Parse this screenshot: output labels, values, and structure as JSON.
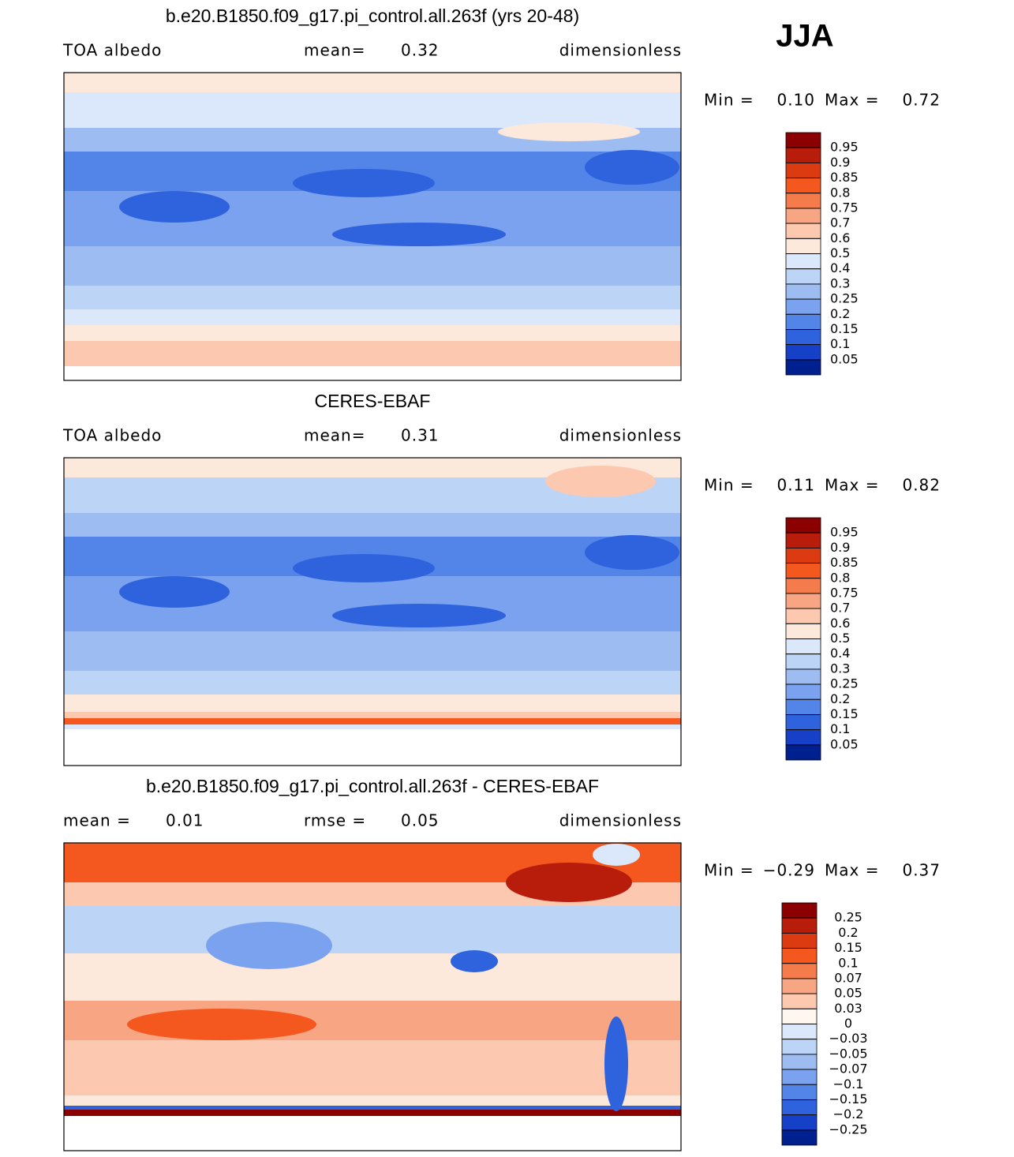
{
  "badge": "JJA",
  "panels": [
    {
      "title": "b.e20.B1850.f09_g17.pi_control.all.263f (yrs 20-48)",
      "header": [
        {
          "text": "TOA albedo"
        },
        {
          "text": "mean=",
          "value": 0.32
        },
        {
          "text": "dimensionless"
        }
      ],
      "min_label": "Min =",
      "min": {
        "value": 0.1,
        "label": "0.10"
      },
      "max_label": "Max =",
      "max": 0.72,
      "colorbar": {
        "levels": [
          0.95,
          0.9,
          0.85,
          0.8,
          0.75,
          0.7,
          0.6,
          0.5,
          0.4,
          0.3,
          0.25,
          0.2,
          0.15,
          0.1,
          0.05
        ],
        "colors": [
          "#8b0000",
          "#b81d0c",
          "#dc3a10",
          "#f4581f",
          "#f47c4c",
          "#f8a584",
          "#fcc9b0",
          "#fde8dc",
          "#dbe8fb",
          "#bcd5f6",
          "#9cbcf2",
          "#7aa2ee",
          "#5385e8",
          "#2f63de",
          "#1740c8",
          "#00208f"
        ]
      }
    },
    {
      "title": "CERES-EBAF",
      "header": [
        {
          "text": "TOA albedo"
        },
        {
          "text": "mean=",
          "value": 0.31
        },
        {
          "text": "dimensionless"
        }
      ],
      "min_label": "Min =",
      "min": 0.11,
      "max_label": "Max =",
      "max": 0.82,
      "colorbar": {
        "levels": [
          0.95,
          0.9,
          0.85,
          0.8,
          0.75,
          0.7,
          0.6,
          0.5,
          0.4,
          0.3,
          0.25,
          0.2,
          0.15,
          0.1,
          0.05
        ],
        "colors": [
          "#8b0000",
          "#b81d0c",
          "#dc3a10",
          "#f4581f",
          "#f47c4c",
          "#f8a584",
          "#fcc9b0",
          "#fde8dc",
          "#dbe8fb",
          "#bcd5f6",
          "#9cbcf2",
          "#7aa2ee",
          "#5385e8",
          "#2f63de",
          "#1740c8",
          "#00208f"
        ]
      }
    },
    {
      "title": "b.e20.B1850.f09_g17.pi_control.all.263f - CERES-EBAF",
      "header": [
        {
          "text": "mean =",
          "value": 0.01
        },
        {
          "text": "rmse =",
          "value": 0.05
        },
        {
          "text": "dimensionless"
        }
      ],
      "min_label": "Min =",
      "min": {
        "value": -0.29,
        "label": "−0.29"
      },
      "max_label": "Max =",
      "max": 0.37,
      "colorbar": {
        "levels": [
          0.25,
          0.2,
          0.15,
          0.1,
          0.07,
          0.05,
          0.03,
          0,
          {
            "value": -0.03,
            "label": "−0.03"
          },
          {
            "value": -0.05,
            "label": "−0.05"
          },
          {
            "value": -0.07,
            "label": "−0.07"
          },
          {
            "value": -0.1,
            "label": "−0.1"
          },
          {
            "value": -0.15,
            "label": "−0.15"
          },
          {
            "value": -0.2,
            "label": "−0.2"
          },
          {
            "value": -0.25,
            "label": "−0.25"
          }
        ],
        "colors": [
          "#8b0000",
          "#b81d0c",
          "#dc3a10",
          "#f4581f",
          "#f47c4c",
          "#f8a584",
          "#fcc9b0",
          "#fff6f0",
          "#dbe8fb",
          "#bcd5f6",
          "#9cbcf2",
          "#7aa2ee",
          "#5385e8",
          "#2f63de",
          "#1740c8",
          "#00208f"
        ]
      }
    }
  ]
}
